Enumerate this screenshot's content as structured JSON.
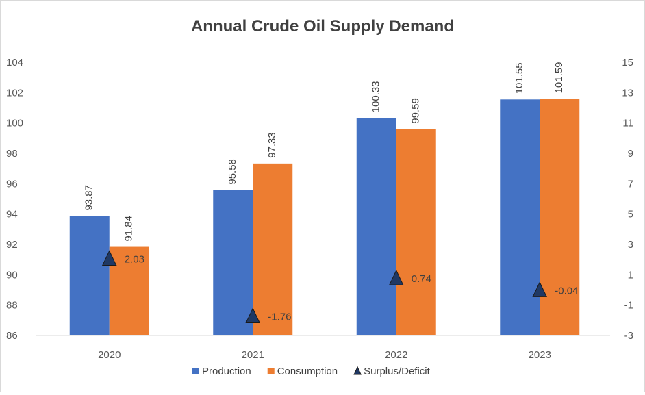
{
  "chart_data": {
    "type": "bar",
    "title": "Annual Crude Oil Supply Demand",
    "categories": [
      "2020",
      "2021",
      "2022",
      "2023"
    ],
    "series": [
      {
        "name": "Production",
        "type": "bar",
        "axis": "left",
        "color": "#4472C4",
        "values": [
          93.87,
          95.58,
          100.33,
          101.55
        ],
        "labels": [
          "93.87",
          "95.58",
          "100.33",
          "101.55"
        ]
      },
      {
        "name": "Consumption",
        "type": "bar",
        "axis": "left",
        "color": "#ED7D31",
        "values": [
          91.84,
          97.33,
          99.59,
          101.59
        ],
        "labels": [
          "91.84",
          "97.33",
          "99.59",
          "101.59"
        ]
      },
      {
        "name": "Surplus/Deficit",
        "type": "scatter",
        "marker": "triangle",
        "axis": "right",
        "color": "#1F3864",
        "values": [
          2.03,
          -1.76,
          0.74,
          -0.04
        ],
        "labels": [
          "2.03",
          "-1.76",
          "0.74",
          "-0.04"
        ]
      }
    ],
    "y_left": {
      "min": 86,
      "max": 104,
      "ticks": [
        "86",
        "88",
        "90",
        "92",
        "94",
        "96",
        "98",
        "100",
        "102",
        "104"
      ]
    },
    "y_right": {
      "min": -3,
      "max": 15,
      "ticks": [
        "-3",
        "-1",
        "1",
        "3",
        "5",
        "7",
        "9",
        "11",
        "13",
        "15"
      ]
    },
    "grid": false,
    "legend_position": "bottom"
  }
}
